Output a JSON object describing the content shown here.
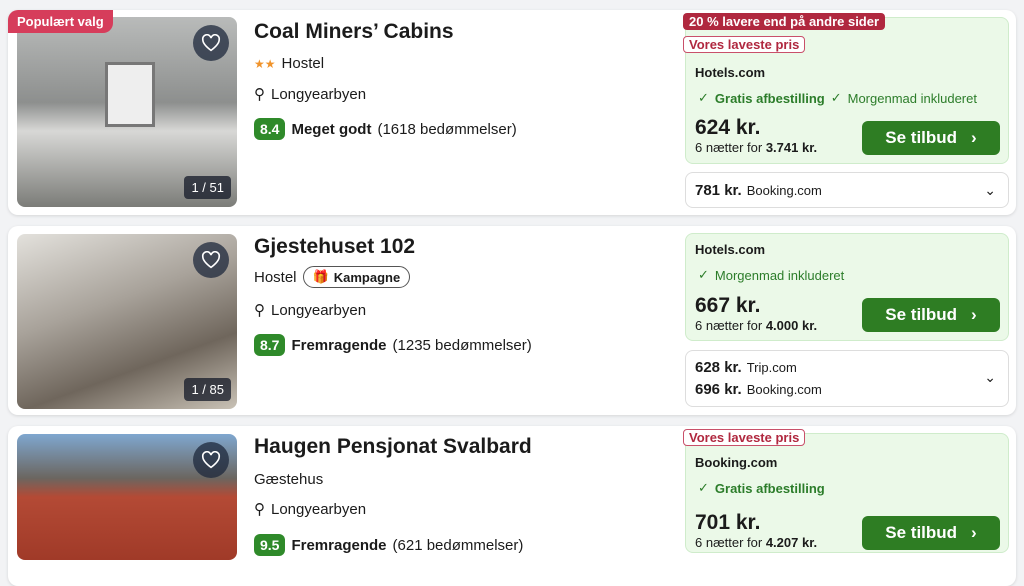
{
  "hotels": [
    {
      "name": "Coal Miners’ Cabins",
      "badge": "Populært valg",
      "stars": "★★",
      "type": "Hostel",
      "location": "Longyearbyen",
      "score": "8.4",
      "rating": "Meget godt",
      "reviews": "(1618 bedømmelser)",
      "photo_counter": "1 / 51",
      "discount_badge": "20 % lavere end på andre sider",
      "lowest_badge": "Vores laveste pris",
      "provider": "Hotels.com",
      "features": [
        "Gratis afbestilling",
        "Morgenmad inkluderet"
      ],
      "price": "624 kr.",
      "nights_prefix": "6 nætter for",
      "total": "3.741 kr.",
      "cta": "Se tilbud",
      "alternatives": [
        {
          "price": "781 kr.",
          "provider": "Booking.com"
        }
      ]
    },
    {
      "name": "Gjestehuset 102",
      "type": "Hostel",
      "promo": "Kampagne",
      "location": "Longyearbyen",
      "score": "8.7",
      "rating": "Fremragende",
      "reviews": "(1235 bedømmelser)",
      "photo_counter": "1 / 85",
      "provider": "Hotels.com",
      "features": [
        "Morgenmad inkluderet"
      ],
      "price": "667 kr.",
      "nights_prefix": "6 nætter for",
      "total": "4.000 kr.",
      "cta": "Se tilbud",
      "alternatives": [
        {
          "price": "628 kr.",
          "provider": "Trip.com"
        },
        {
          "price": "696 kr.",
          "provider": "Booking.com"
        }
      ]
    },
    {
      "name": "Haugen Pensjonat Svalbard",
      "type": "Gæstehus",
      "location": "Longyearbyen",
      "score": "9.5",
      "rating": "Fremragende",
      "reviews": "(621 bedømmelser)",
      "lowest_badge": "Vores laveste pris",
      "provider": "Booking.com",
      "features": [
        "Gratis afbestilling"
      ],
      "price": "701 kr.",
      "nights_prefix": "6 nætter for",
      "total": "4.207 kr.",
      "cta": "Se tilbud"
    }
  ],
  "colors": {
    "accent_green": "#2e7d23",
    "badge_red": "#b0283f",
    "popular_pink": "#d63d5b",
    "deal_bg": "#ebf9e8"
  }
}
